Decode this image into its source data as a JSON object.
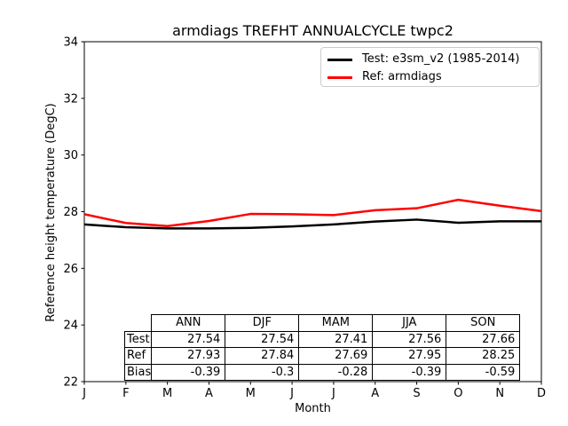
{
  "figure": {
    "background": "#ffffff"
  },
  "chart_data": {
    "type": "line",
    "title": "armdiags TREFHT ANNUALCYCLE twpc2",
    "xlabel": "Month",
    "ylabel": "Reference height temperature (DegC)",
    "x_tick_labels": [
      "J",
      "F",
      "M",
      "A",
      "M",
      "J",
      "J",
      "A",
      "S",
      "O",
      "N",
      "D"
    ],
    "y_ticks": [
      22,
      24,
      26,
      28,
      30,
      32,
      34
    ],
    "ylim": [
      22,
      34
    ],
    "grid": false,
    "legend_position": "upper right",
    "series": [
      {
        "name": "Test: e3sm_v2 (1985-2014)",
        "color": "#000000",
        "values": [
          27.55,
          27.45,
          27.41,
          27.41,
          27.43,
          27.48,
          27.55,
          27.65,
          27.72,
          27.61,
          27.66,
          27.66
        ]
      },
      {
        "name": "Ref: armdiags",
        "color": "#ff0000",
        "values": [
          27.91,
          27.6,
          27.49,
          27.67,
          27.92,
          27.91,
          27.88,
          28.05,
          28.12,
          28.42,
          28.21,
          28.02
        ]
      }
    ]
  },
  "stats_table": {
    "columns": [
      "ANN",
      "DJF",
      "MAM",
      "JJA",
      "SON"
    ],
    "rows": [
      {
        "label": "Test",
        "values": [
          "27.54",
          "27.54",
          "27.41",
          "27.56",
          "27.66"
        ]
      },
      {
        "label": "Ref",
        "values": [
          "27.93",
          "27.84",
          "27.69",
          "27.95",
          "28.25"
        ]
      },
      {
        "label": "Bias",
        "values": [
          "-0.39",
          "-0.3",
          "-0.28",
          "-0.39",
          "-0.59"
        ]
      }
    ]
  }
}
